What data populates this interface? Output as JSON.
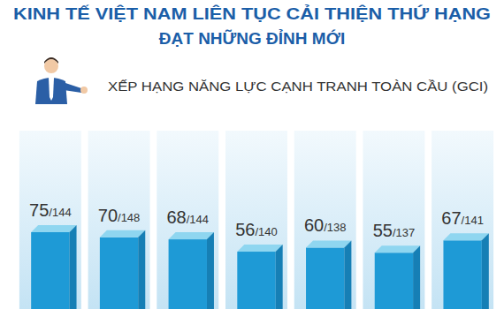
{
  "chart_data": {
    "type": "bar",
    "title": [
      "KINH TẾ VIỆT NAM LIÊN TỤC CẢI THIỆN THỨ HẠNG",
      "ĐẠT NHỮNG ĐỈNH MỚI"
    ],
    "subtitle": "XẾP HẠNG NĂNG LỰC CẠNH TRANH TOÀN CẦU (GCI)",
    "categories": [
      null,
      null,
      null,
      null,
      null,
      null,
      null
    ],
    "values": [
      75,
      70,
      68,
      56,
      60,
      55,
      67
    ],
    "value_labels": [
      "75/144",
      "70/148",
      "68/144",
      "56/140",
      "60/138",
      "55/137",
      "67/141"
    ],
    "color": "#1e9ad6",
    "ylim": [
      0,
      200
    ],
    "data_labels": true,
    "tick_labels": false,
    "grid": false
  }
}
